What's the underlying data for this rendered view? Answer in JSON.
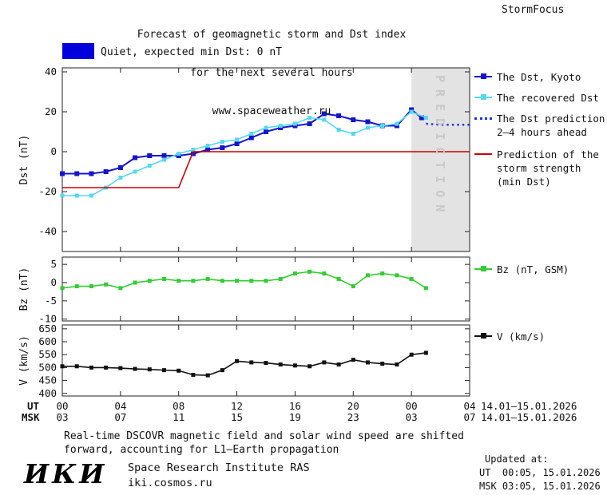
{
  "colors": {
    "kyoto": "#1414cc",
    "recovered": "#55d9f0",
    "prediction": "#2233dd",
    "red": "#cc0000",
    "green": "#33cc33",
    "black": "#111111",
    "band": "#e3e3e3",
    "band_text": "#c8c8c8",
    "legend_box": "#0000dd"
  },
  "header": {
    "title_line1": "Forecast of geomagnetic storm and Dst index",
    "title_line2": "for the next several hours",
    "title_line3": "www.spaceweather.ru",
    "brand": "StormFocus",
    "quiet_label": "Quiet, expected min Dst: 0 nT"
  },
  "legend": {
    "kyoto": "The Dst, Kyoto",
    "recovered": "The recovered Dst",
    "prediction_line1": "The Dst prediction",
    "prediction_line2": "2–4 hours ahead",
    "red_line1": "Prediction of the",
    "red_line2": "storm strength",
    "red_line3": "(min Dst)",
    "bz": "Bz (nT, GSM)",
    "v": "V (km/s)"
  },
  "axes": {
    "ut_label": "UT",
    "msk_label": "MSK",
    "ut_ticks": [
      "00",
      "04",
      "08",
      "12",
      "16",
      "20",
      "00",
      "04"
    ],
    "msk_ticks": [
      "03",
      "07",
      "11",
      "15",
      "19",
      "23",
      "03",
      "07"
    ],
    "date_range_ut": "14.01–15.01.2026",
    "date_range_msk": "14.01–15.01.2026",
    "prediction_band_label": "PREDICTION"
  },
  "footer": {
    "note_line1": "Real-time DSCOVR magnetic field and solar wind speed are shifted",
    "note_line2": "forward, accounting for L1–Earth propagation",
    "logo": "ИКИ",
    "institute": "Space Research Institute RAS",
    "site": "iki.cosmos.ru",
    "updated_label": "Updated at:",
    "updated_ut": "UT  00:05, 15.01.2026",
    "updated_msk": "MSK 03:05, 15.01.2026"
  },
  "chart_data": [
    {
      "type": "line",
      "title": "Forecast of geomagnetic storm and Dst index for the next several hours",
      "ylabel": "Dst (nT)",
      "xlim": [
        0,
        28
      ],
      "ylim": [
        -50,
        42
      ],
      "xticks": [
        0,
        4,
        8,
        12,
        16,
        20,
        24,
        28
      ],
      "yticks": [
        40,
        20,
        0,
        -20,
        -40
      ],
      "grid": false,
      "legend_position": "right",
      "prediction_band_x": [
        24,
        28
      ],
      "series": [
        {
          "name": "The Dst, Kyoto",
          "color_key": "kyoto",
          "marker": "square",
          "marker_size": 6,
          "width": 2,
          "x": [
            0,
            1,
            2,
            3,
            4,
            5,
            6,
            7,
            8,
            9,
            10,
            11,
            12,
            13,
            14,
            15,
            16,
            17,
            18,
            19,
            20,
            21,
            22,
            23,
            24,
            24.7
          ],
          "y": [
            -11,
            -11,
            -11,
            -10,
            -8,
            -3,
            -2,
            -2,
            -2,
            -1,
            1,
            2,
            4,
            7,
            10,
            12,
            13,
            14,
            19,
            18,
            16,
            15,
            13,
            13,
            21,
            17
          ]
        },
        {
          "name": "The recovered Dst",
          "color_key": "recovered",
          "marker": "square",
          "marker_size": 5,
          "width": 1.6,
          "x": [
            0,
            1,
            2,
            3,
            4,
            5,
            6,
            7,
            8,
            9,
            10,
            11,
            12,
            13,
            14,
            15,
            16,
            17,
            18,
            19,
            20,
            21,
            22,
            23,
            24,
            25
          ],
          "y": [
            -22,
            -22,
            -22,
            -18,
            -13,
            -10,
            -7,
            -4,
            -1,
            1,
            3,
            5,
            6,
            9,
            12,
            13,
            14,
            17,
            16,
            11,
            9,
            12,
            13,
            14,
            20,
            17
          ]
        },
        {
          "name": "The Dst prediction 2–4 hours ahead",
          "color_key": "prediction",
          "style": "dotted",
          "width": 2.4,
          "x": [
            25,
            26,
            27,
            28
          ],
          "y": [
            14,
            13.5,
            13.5,
            13.5
          ]
        },
        {
          "name": "Prediction of the storm strength (min Dst)",
          "color_key": "red",
          "width": 1.6,
          "x": [
            0,
            8,
            9,
            28
          ],
          "y": [
            -18,
            -18,
            0,
            0
          ]
        }
      ]
    },
    {
      "type": "line",
      "ylabel": "Bz (nT)",
      "xlim": [
        0,
        28
      ],
      "ylim": [
        -10.5,
        7
      ],
      "xticks": [
        0,
        4,
        8,
        12,
        16,
        20,
        24,
        28
      ],
      "yticks": [
        5,
        0,
        -5,
        -10
      ],
      "grid": false,
      "series": [
        {
          "name": "Bz (nT, GSM)",
          "color_key": "green",
          "marker": "square",
          "marker_size": 5,
          "width": 1.6,
          "x": [
            0,
            1,
            2,
            3,
            4,
            5,
            6,
            7,
            8,
            9,
            10,
            11,
            12,
            13,
            14,
            15,
            16,
            17,
            18,
            19,
            20,
            21,
            22,
            23,
            24,
            25
          ],
          "y": [
            -1.5,
            -1,
            -1,
            -0.5,
            -1.5,
            0,
            0.5,
            1,
            0.5,
            0.5,
            1,
            0.5,
            0.5,
            0.5,
            0.5,
            1,
            2.5,
            3,
            2.5,
            1,
            -1,
            2,
            2.5,
            2,
            1,
            -1.5
          ]
        }
      ]
    },
    {
      "type": "line",
      "ylabel": "V (km/s)",
      "xlim": [
        0,
        28
      ],
      "ylim": [
        390,
        665
      ],
      "xticks": [
        0,
        4,
        8,
        12,
        16,
        20,
        24,
        28
      ],
      "yticks": [
        650,
        600,
        550,
        500,
        450,
        400
      ],
      "grid": false,
      "series": [
        {
          "name": "V (km/s)",
          "color_key": "black",
          "marker": "square",
          "marker_size": 5,
          "width": 1.6,
          "x": [
            0,
            1,
            2,
            3,
            4,
            5,
            6,
            7,
            8,
            9,
            10,
            11,
            12,
            13,
            14,
            15,
            16,
            17,
            18,
            19,
            20,
            21,
            22,
            23,
            24,
            25
          ],
          "y": [
            505,
            505,
            500,
            500,
            498,
            495,
            493,
            490,
            488,
            472,
            470,
            490,
            525,
            520,
            518,
            512,
            508,
            505,
            520,
            512,
            530,
            520,
            515,
            512,
            550,
            557
          ]
        }
      ]
    }
  ]
}
